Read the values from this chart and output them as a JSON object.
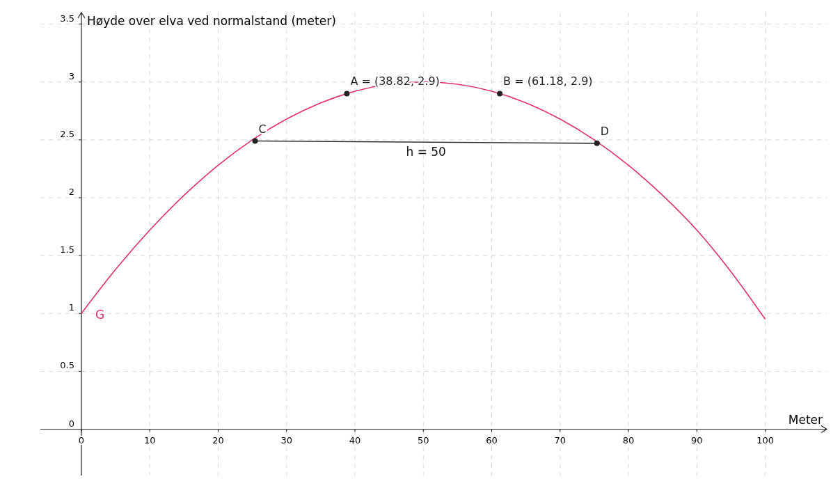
{
  "chart_data": {
    "type": "line",
    "xlabel": "Meter",
    "ylabel": "Høyde over elva ved normalstand (meter)",
    "xlim": [
      -6,
      109
    ],
    "ylim": [
      -0.4,
      3.6
    ],
    "xticks": [
      0,
      10,
      20,
      30,
      40,
      50,
      60,
      70,
      80,
      90,
      100
    ],
    "yticks": [
      0,
      0.5,
      1,
      1.5,
      2,
      2.5,
      3,
      3.5
    ],
    "grid": true,
    "marker": "none",
    "series": [
      {
        "name": "G",
        "color": "#e0306a",
        "x": [
          0,
          5,
          10,
          15,
          20,
          25,
          30,
          35,
          40,
          45,
          50,
          55,
          60,
          65,
          70,
          75,
          80,
          85,
          90,
          95,
          100
        ],
        "values": [
          1.0,
          1.38,
          1.72,
          2.02,
          2.28,
          2.5,
          2.68,
          2.82,
          2.92,
          2.98,
          3.0,
          2.98,
          2.92,
          2.82,
          2.68,
          2.5,
          2.28,
          2.02,
          1.72,
          1.36,
          0.95
        ]
      },
      {
        "name": "h = 50",
        "color": "#333333",
        "x": [
          25.4,
          75.4
        ],
        "values": [
          2.49,
          2.47
        ]
      },
      {
        "type": "scatter",
        "color": "#222222",
        "marker": "circle",
        "x": [
          25.4,
          38.82,
          61.18,
          75.4
        ],
        "values": [
          2.49,
          2.9,
          2.9,
          2.47
        ],
        "value_labels": [
          "C",
          "A = (38.82, 2.9)",
          "B = (61.18, 2.9)",
          "D"
        ]
      }
    ]
  }
}
